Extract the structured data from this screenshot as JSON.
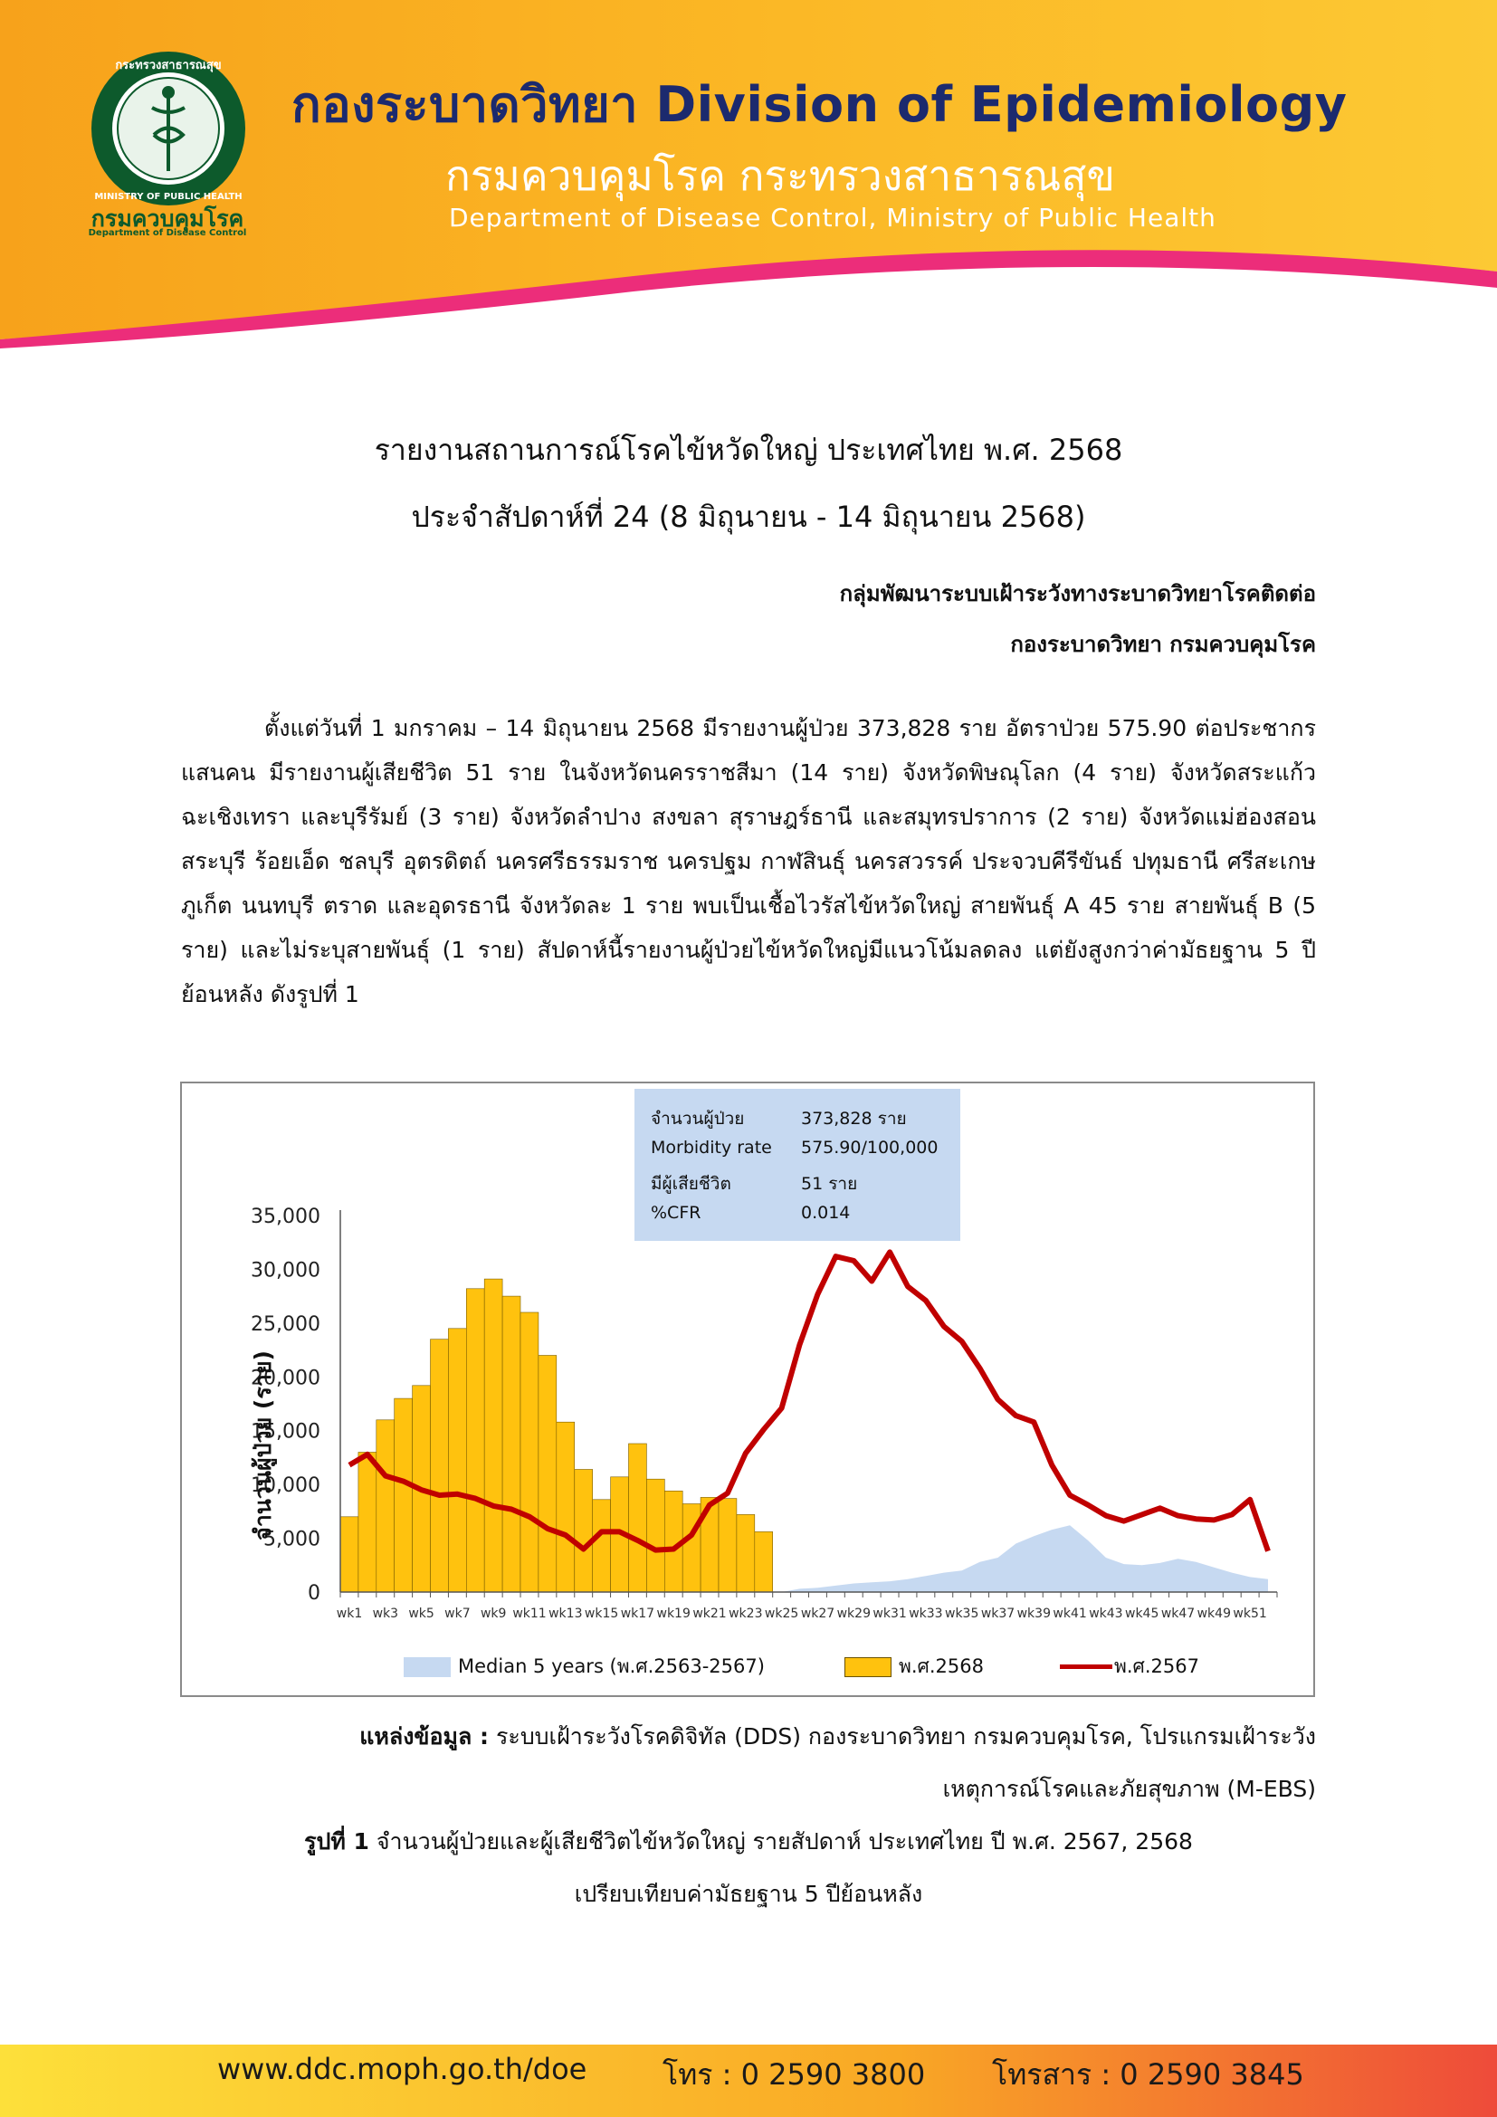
{
  "header": {
    "title": "กองระบาดวิทยา Division of Epidemiology",
    "subtitle": "กรมควบคุมโรค กระทรวงสาธารณสุข",
    "department": "Department of Disease Control, Ministry of Public Health",
    "logo_text_th": "กรมควบคุมโรค",
    "logo_text_en": "Department of Disease Control",
    "logo_ring_text": "กระทรวงสาธารณสุข MINISTRY OF PUBLIC HEALTH"
  },
  "report": {
    "title_line1": "รายงานสถานการณ์โรคไข้หวัดใหญ่ ประเทศไทย พ.ศ. 2568",
    "title_line2": "ประจำสัปดาห์ที่ 24 (8 มิถุนายน - 14 มิถุนายน 2568)",
    "org_line1": "กลุ่มพัฒนาระบบเฝ้าระวังทางระบาดวิทยาโรคติดต่อ",
    "org_line2": "กองระบาดวิทยา กรมควบคุมโรค",
    "body": "ตั้งแต่วันที่ 1 มกราคม – 14 มิถุนายน 2568 มีรายงานผู้ป่วย 373,828 ราย อัตราป่วย 575.90 ต่อประชากรแสนคน มีรายงานผู้เสียชีวิต 51 ราย ในจังหวัดนครราชสีมา (14 ราย) จังหวัดพิษณุโลก (4 ราย) จังหวัดสระแก้ว ฉะเชิงเทรา และบุรีรัมย์ (3 ราย) จังหวัดลำปาง สงขลา สุราษฎร์ธานี และสมุทรปราการ (2 ราย) จังหวัดแม่ฮ่องสอน สระบุรี ร้อยเอ็ด ชลบุรี อุตรดิตถ์ นครศรีธรรมราช นครปฐม กาฬสินธุ์ นครสวรรค์ ประจวบคีรีขันธ์ ปทุมธานี ศรีสะเกษ ภูเก็ต นนทบุรี ตราด และอุดรธานี จังหวัดละ 1 ราย พบเป็นเชื้อไวรัสไข้หวัดใหญ่ สายพันธุ์ A 45 ราย สายพันธุ์ B (5 ราย) และไม่ระบุสายพันธุ์ (1 ราย) สัปดาห์นี้รายงานผู้ป่วยไข้หวัดใหญ่มีแนวโน้มลดลง แต่ยังสูงกว่าค่ามัธยฐาน 5 ปีย้อนหลัง ดังรูปที่ 1"
  },
  "stats": {
    "rows": [
      {
        "label": "จำนวนผู้ป่วย",
        "value": "373,828 ราย"
      },
      {
        "label": "Morbidity rate",
        "value": "575.90/100,000"
      },
      {
        "label": "มีผู้เสียชีวิต",
        "value": " 51 ราย"
      },
      {
        "label": "%CFR",
        "value": "0.014"
      }
    ]
  },
  "chart_data": {
    "type": "bar",
    "ylabel": "จำนวนผู้ป่วย (ราย)",
    "ylim": [
      0,
      35000
    ],
    "yticks": [
      "0",
      "5,000",
      "10,000",
      "15,000",
      "20,000",
      "25,000",
      "30,000",
      "35,000"
    ],
    "xticks": [
      "wk1",
      "wk3",
      "wk5",
      "wk7",
      "wk9",
      "wk11",
      "wk13",
      "wk15",
      "wk17",
      "wk19",
      "wk21",
      "wk23",
      "wk25",
      "wk27",
      "wk29",
      "wk31",
      "wk33",
      "wk35",
      "wk37",
      "wk39",
      "wk41",
      "wk43",
      "wk45",
      "wk47",
      "wk49",
      "wk51"
    ],
    "legend_position": "bottom",
    "series": [
      {
        "name": "Median 5 years (พ.ศ.2563-2567)",
        "type": "area",
        "color": "#c6d9f1",
        "values": [
          0,
          0,
          0,
          0,
          0,
          0,
          0,
          0,
          0,
          0,
          0,
          0,
          0,
          0,
          0,
          0,
          0,
          0,
          0,
          0,
          0,
          0,
          0,
          0,
          0,
          300,
          400,
          600,
          800,
          900,
          1000,
          1200,
          1500,
          1800,
          2000,
          2800,
          3200,
          4500,
          5200,
          5800,
          6200,
          4800,
          3200,
          2600,
          2500,
          2700,
          3100,
          2800,
          2300,
          1800,
          1400,
          1200
        ]
      },
      {
        "name": "พ.ศ.2568",
        "type": "bar",
        "color": "#ffc20e",
        "values": [
          7000,
          13000,
          16000,
          18000,
          19200,
          23500,
          24500,
          28200,
          29100,
          27500,
          26000,
          22000,
          15800,
          11400,
          8600,
          10700,
          13800,
          10500,
          9400,
          8200,
          8800,
          8700,
          7200,
          5600
        ]
      },
      {
        "name": "พ.ศ.2567",
        "type": "line",
        "color": "#c00000",
        "values": [
          11800,
          12800,
          10800,
          10300,
          9500,
          9000,
          9100,
          8700,
          8000,
          7700,
          7000,
          5900,
          5300,
          4000,
          5600,
          5600,
          4800,
          3900,
          4000,
          5300,
          8100,
          9200,
          12900,
          15100,
          17100,
          23000,
          27700,
          31200,
          30800,
          28900,
          31600,
          28400,
          27100,
          24700,
          23300,
          20800,
          17900,
          16400,
          15800,
          11800,
          9000,
          8100,
          7100,
          6600,
          7200,
          7800,
          7100,
          6800,
          6700,
          7200,
          8600,
          3800
        ]
      }
    ]
  },
  "source": {
    "label": "แหล่งข้อมูล :",
    "text_line1": " ระบบเฝ้าระวังโรคดิจิทัล (DDS) กองระบาดวิทยา กรมควบคุมโรค, โปรแกรมเฝ้าระวัง",
    "text_line2": "เหตุการณ์โรคและภัยสุขภาพ (M-EBS)"
  },
  "figure_caption": {
    "label": "รูปที่ 1",
    "line1": " จำนวนผู้ป่วยและผู้เสียชีวิตไข้หวัดใหญ่ รายสัปดาห์ ประเทศไทย ปี พ.ศ. 2567, 2568",
    "line2": "เปรียบเทียบค่ามัธยฐาน 5 ปีย้อนหลัง"
  },
  "footer": {
    "website": "www.ddc.moph.go.th/doe",
    "phone": "โทร : 0 2590 3800",
    "fax": "โทรสาร : 0 2590 3845"
  },
  "colors": {
    "header_orange": "#f9a825",
    "header_pink": "#ec2d7a",
    "title_navy": "#1c2a6e",
    "logo_green": "#0d5a2c"
  }
}
